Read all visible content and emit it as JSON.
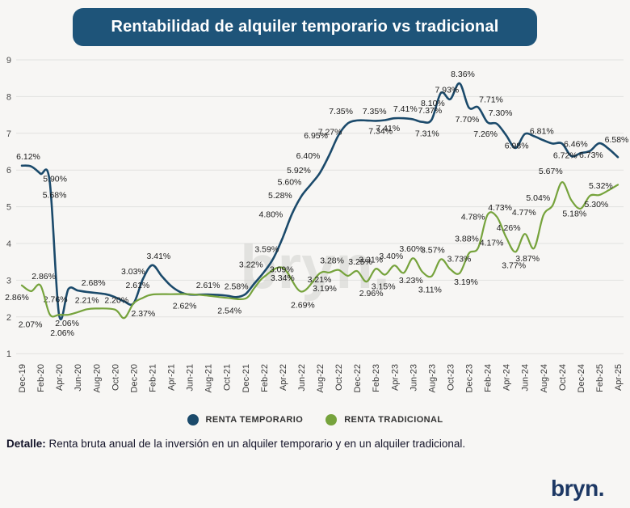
{
  "title": "Rentabilidad de alquiler temporario vs tradicional",
  "title_bg": "#1e5479",
  "watermark": "bryn.",
  "logo": "bryn.",
  "footer": {
    "label": "Detalle:",
    "text": " Renta bruta anual de la inversión en un alquiler temporario y en un alquiler tradicional."
  },
  "legend": [
    {
      "name": "RENTA TEMPORARIO",
      "color": "#1b4a6b"
    },
    {
      "name": "RENTA TRADICIONAL",
      "color": "#76a33c"
    }
  ],
  "chart_data": {
    "type": "line",
    "title": "Rentabilidad de alquiler temporario vs tradicional",
    "ylim": [
      1,
      9
    ],
    "y_tick_labels": [
      "9",
      "8",
      "7",
      "6",
      "5",
      "4",
      "3",
      "2",
      "1"
    ],
    "x_tick_labels": [
      "Dec-19",
      "Feb-20",
      "Apr-20",
      "Jun-20",
      "Aug-20",
      "Oct-20",
      "Dec-20",
      "Feb-21",
      "Apr-21",
      "Jun-21",
      "Aug-21",
      "Oct-21",
      "Dec-21",
      "Feb-22",
      "Apr-22",
      "Jun-22",
      "Aug-22",
      "Oct-22",
      "Dec-22",
      "Feb-23",
      "Apr-23",
      "Jun-23",
      "Aug-23",
      "Oct-23",
      "Dec-23",
      "Feb-24",
      "Apr-24",
      "Jun-24",
      "Aug-24",
      "Oct-24",
      "Dec-24",
      "Feb-25",
      "Apr-25"
    ],
    "x_unit": "months since Dec-19, ticks every 2 months",
    "months_span": 64,
    "grid": true,
    "legend_position": "bottom",
    "point_format": "[monthIndex, value, label?, labelDx?, labelDy?]",
    "series": [
      {
        "name": "RENTA TEMPORARIO",
        "color": "#1b4a6b",
        "points": [
          [
            0,
            6.12,
            "6.12%",
            8,
            -8
          ],
          [
            1,
            6.1
          ],
          [
            2,
            5.9,
            "5.90%",
            18,
            10
          ],
          [
            3,
            5.68,
            "5.68%",
            6,
            20
          ],
          [
            4,
            2.06,
            "2.06%",
            4,
            26
          ],
          [
            5,
            2.76,
            "2.76%",
            -16,
            16
          ],
          [
            6,
            2.72
          ],
          [
            7,
            2.68,
            "2.68%",
            8,
            -8
          ],
          [
            9,
            2.62
          ],
          [
            10,
            2.54
          ],
          [
            11,
            2.42
          ],
          [
            12,
            2.37,
            "2.37%",
            12,
            16
          ],
          [
            13,
            3.03,
            "3.03%",
            -12,
            -6
          ],
          [
            14,
            3.41,
            "3.41%",
            8,
            -8
          ],
          [
            15,
            3.12
          ],
          [
            16,
            2.85
          ],
          [
            17,
            2.68
          ],
          [
            18,
            2.61
          ],
          [
            20,
            2.61,
            "2.61%",
            0,
            -8
          ],
          [
            22,
            2.58,
            "2.58%",
            12,
            -8
          ],
          [
            23,
            2.54,
            "2.54%",
            -8,
            20
          ],
          [
            24,
            2.62
          ],
          [
            25,
            2.92
          ],
          [
            26,
            3.22,
            "3.22%",
            -16,
            -6
          ],
          [
            27,
            3.59,
            "3.59%",
            -8,
            -8
          ],
          [
            28,
            4.15
          ],
          [
            29,
            4.8,
            "4.80%",
            -26,
            4
          ],
          [
            30,
            5.28,
            "5.28%",
            -26,
            2
          ],
          [
            31,
            5.6,
            "5.60%",
            -26,
            0
          ],
          [
            32,
            5.92,
            "5.92%",
            -26,
            0
          ],
          [
            33,
            6.4,
            "6.40%",
            -26,
            4
          ],
          [
            34,
            6.95,
            "6.95%",
            -28,
            4
          ],
          [
            35,
            7.27,
            "7.27%",
            -22,
            14
          ],
          [
            36,
            7.35,
            "7.35%",
            -20,
            -8
          ],
          [
            37,
            7.35,
            "7.35%",
            10,
            -8
          ],
          [
            38,
            7.34,
            "7.34%",
            6,
            16
          ],
          [
            39,
            7.36
          ],
          [
            40,
            7.41,
            "7.41%",
            -8,
            16
          ],
          [
            41,
            7.41,
            "7.41%",
            2,
            -8
          ],
          [
            42,
            7.38
          ],
          [
            43,
            7.31,
            "7.31%",
            6,
            18
          ],
          [
            44,
            7.37,
            "7.37%",
            -2,
            -8
          ],
          [
            45,
            8.1,
            "8.10%",
            -10,
            16
          ],
          [
            46,
            7.93,
            "7.93%",
            -4,
            -8
          ],
          [
            47,
            8.36,
            "8.36%",
            4,
            -8
          ],
          [
            48,
            7.7,
            "7.70%",
            -2,
            18
          ],
          [
            49,
            7.71,
            "7.71%",
            16,
            -6
          ],
          [
            50,
            7.3,
            "7.30%",
            16,
            -8
          ],
          [
            51,
            7.26,
            "7.26%",
            -14,
            16
          ],
          [
            52,
            6.95
          ],
          [
            53,
            6.6
          ],
          [
            54,
            6.98,
            "6.98%",
            -10,
            18
          ],
          [
            55,
            6.92
          ],
          [
            56,
            6.81,
            "6.81%",
            -2,
            -8
          ],
          [
            57,
            6.72
          ],
          [
            58,
            6.72,
            "6.72%",
            4,
            18
          ],
          [
            59,
            6.38
          ],
          [
            60,
            6.46,
            "6.46%",
            -6,
            -8
          ],
          [
            61,
            6.52
          ],
          [
            62,
            6.73,
            "6.73%",
            -10,
            18
          ],
          [
            63,
            6.58,
            "6.58%",
            10,
            -8
          ],
          [
            64,
            6.35
          ]
        ]
      },
      {
        "name": "RENTA TRADICIONAL",
        "color": "#76a33c",
        "points": [
          [
            0,
            2.86,
            "2.86%",
            -6,
            18
          ],
          [
            1,
            2.7
          ],
          [
            2,
            2.86,
            "2.86%",
            4,
            -8
          ],
          [
            3,
            2.07,
            "2.07%",
            -24,
            16
          ],
          [
            4,
            2.06,
            "2.06%",
            10,
            14
          ],
          [
            5,
            2.06
          ],
          [
            6,
            2.13
          ],
          [
            7,
            2.21,
            "2.21%",
            0,
            -8
          ],
          [
            8,
            2.23
          ],
          [
            10,
            2.2,
            "2.20%",
            2,
            -8
          ],
          [
            11,
            1.97
          ],
          [
            12,
            2.37
          ],
          [
            13,
            2.52
          ],
          [
            14,
            2.61,
            "2.61%",
            -18,
            -8
          ],
          [
            16,
            2.62
          ],
          [
            18,
            2.62,
            "2.62%",
            -6,
            18
          ],
          [
            20,
            2.58
          ],
          [
            22,
            2.52
          ],
          [
            24,
            2.5
          ],
          [
            25,
            2.8
          ],
          [
            26,
            3.09,
            "3.09%",
            22,
            -6
          ],
          [
            28,
            3.34,
            "3.34%",
            0,
            16
          ],
          [
            30,
            2.69,
            "2.69%",
            2,
            20
          ],
          [
            32,
            3.19,
            "3.19%",
            6,
            22
          ],
          [
            33,
            3.21,
            "3.21%",
            -12,
            12
          ],
          [
            34,
            3.28,
            "3.28%",
            -8,
            -8
          ],
          [
            35,
            3.12
          ],
          [
            36,
            3.25,
            "3.25%",
            4,
            -8
          ],
          [
            37,
            2.96,
            "2.96%",
            6,
            18
          ],
          [
            38,
            3.31,
            "3.31%",
            -6,
            -8
          ],
          [
            39,
            3.15,
            "3.15%",
            -2,
            18
          ],
          [
            40,
            3.4,
            "3.40%",
            -4,
            -8
          ],
          [
            41,
            3.2
          ],
          [
            42,
            3.6,
            "3.60%",
            -2,
            -8
          ],
          [
            43,
            3.23,
            "3.23%",
            -14,
            14
          ],
          [
            44,
            3.11,
            "3.11%",
            -2,
            20
          ],
          [
            45,
            3.57,
            "3.57%",
            -10,
            -8
          ],
          [
            46,
            3.3
          ],
          [
            47,
            3.19,
            "3.19%",
            8,
            14
          ],
          [
            48,
            3.73,
            "3.73%",
            -12,
            10
          ],
          [
            49,
            3.88,
            "3.88%",
            -14,
            -8
          ],
          [
            50,
            4.78,
            "4.78%",
            -18,
            6
          ],
          [
            51,
            4.73,
            "4.73%",
            4,
            -8
          ],
          [
            52,
            4.17,
            "4.17%",
            -18,
            10
          ],
          [
            53,
            3.77,
            "3.77%",
            -2,
            20
          ],
          [
            54,
            4.26,
            "4.26%",
            -20,
            -4
          ],
          [
            55,
            3.87,
            "3.87%",
            -8,
            16
          ],
          [
            56,
            4.77,
            "4.77%",
            -24,
            0
          ],
          [
            57,
            5.04,
            "5.04%",
            -18,
            -6
          ],
          [
            58,
            5.67,
            "5.67%",
            -14,
            -10
          ],
          [
            59,
            5.18,
            "5.18%",
            4,
            20
          ],
          [
            60,
            4.95
          ],
          [
            61,
            5.3,
            "5.30%",
            8,
            14
          ],
          [
            62,
            5.32,
            "5.32%",
            2,
            -8
          ],
          [
            63,
            5.45
          ],
          [
            64,
            5.6
          ]
        ]
      }
    ]
  }
}
